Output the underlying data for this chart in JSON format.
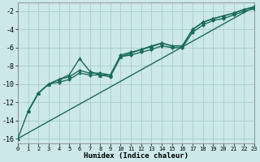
{
  "xlabel": "Humidex (Indice chaleur)",
  "bg_color": "#cce8e8",
  "grid_color": "#aacccc",
  "line_color": "#1a6b5a",
  "xlim": [
    0,
    23
  ],
  "ylim": [
    -16.5,
    -1.0
  ],
  "xticks": [
    0,
    1,
    2,
    3,
    4,
    5,
    6,
    7,
    8,
    9,
    10,
    11,
    12,
    13,
    14,
    15,
    16,
    17,
    18,
    19,
    20,
    21,
    22,
    23
  ],
  "yticks": [
    -16,
    -14,
    -12,
    -10,
    -8,
    -6,
    -4,
    -2
  ],
  "series": [
    {
      "x": [
        1,
        2,
        3,
        4,
        5,
        6,
        7,
        8,
        9,
        10,
        11,
        12,
        13,
        14,
        15,
        16,
        17,
        18,
        19,
        20,
        21,
        22,
        23
      ],
      "y": [
        -13.0,
        -11.0,
        -10.0,
        -9.5,
        -9.2,
        -8.5,
        -8.8,
        -8.8,
        -9.0,
        -6.8,
        -6.5,
        -6.2,
        -5.9,
        -5.5,
        -5.8,
        -5.8,
        -4.0,
        -3.2,
        -2.8,
        -2.5,
        -2.2,
        -1.8,
        -1.5
      ],
      "marker": "D",
      "markersize": 2,
      "linewidth": 1.0,
      "linestyle": "-"
    },
    {
      "x": [
        1,
        2,
        3,
        4,
        5,
        6,
        7,
        8,
        9,
        10,
        11,
        12,
        13,
        14,
        15,
        16,
        17,
        18,
        19,
        20,
        21,
        22,
        23
      ],
      "y": [
        -13.0,
        -11.0,
        -10.0,
        -9.8,
        -9.5,
        -8.8,
        -9.0,
        -9.0,
        -9.2,
        -7.0,
        -6.8,
        -6.5,
        -6.2,
        -5.8,
        -6.0,
        -6.0,
        -4.3,
        -3.5,
        -3.0,
        -2.8,
        -2.4,
        -2.0,
        -1.7
      ],
      "marker": "D",
      "markersize": 2,
      "linewidth": 1.0,
      "linestyle": "-"
    },
    {
      "x": [
        0,
        1,
        2,
        3,
        4,
        5,
        6,
        7,
        8,
        9,
        10,
        11,
        12,
        13,
        14,
        15,
        16,
        17,
        18,
        19,
        20,
        21,
        22,
        23
      ],
      "y": [
        -16.0,
        -13.0,
        -11.0,
        -10.0,
        -9.5,
        -9.0,
        -7.2,
        -8.6,
        -9.0,
        -9.0,
        -7.0,
        -6.6,
        -6.2,
        -5.8,
        -5.5,
        -5.8,
        -5.8,
        -4.0,
        -3.2,
        -2.8,
        -2.5,
        -2.2,
        -1.8,
        -1.5
      ],
      "marker": "^",
      "markersize": 3,
      "linewidth": 1.0,
      "linestyle": "-"
    },
    {
      "x": [
        0,
        23
      ],
      "y": [
        -16.0,
        -1.5
      ],
      "marker": null,
      "markersize": 0,
      "linewidth": 1.0,
      "linestyle": "-"
    }
  ]
}
